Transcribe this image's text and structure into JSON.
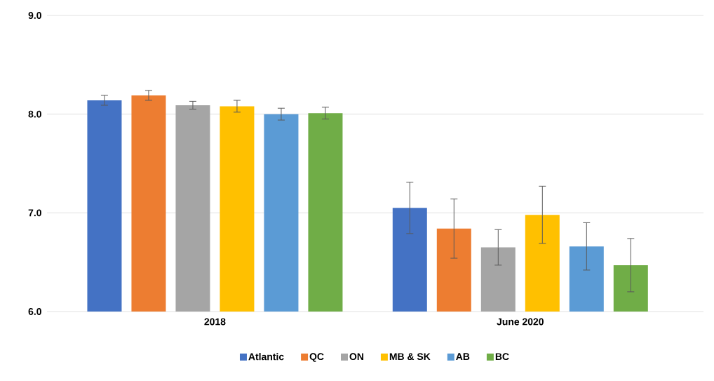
{
  "chart_data": {
    "type": "bar",
    "categories": [
      "2018",
      "June 2020"
    ],
    "series": [
      {
        "name": "Atlantic",
        "color": "#4472c4",
        "values": [
          8.14,
          7.05
        ],
        "errors": [
          0.05,
          0.26
        ]
      },
      {
        "name": "QC",
        "color": "#ed7d31",
        "values": [
          8.19,
          6.84
        ],
        "errors": [
          0.05,
          0.3
        ]
      },
      {
        "name": "ON",
        "color": "#a5a5a5",
        "values": [
          8.09,
          6.65
        ],
        "errors": [
          0.04,
          0.18
        ]
      },
      {
        "name": "MB & SK",
        "color": "#ffc000",
        "values": [
          8.08,
          6.98
        ],
        "errors": [
          0.06,
          0.29
        ]
      },
      {
        "name": "AB",
        "color": "#5b9bd5",
        "values": [
          8.0,
          6.66
        ],
        "errors": [
          0.06,
          0.24
        ]
      },
      {
        "name": "BC",
        "color": "#70ad47",
        "values": [
          8.01,
          6.47
        ],
        "errors": [
          0.06,
          0.27
        ]
      }
    ],
    "ylim": [
      6,
      9
    ],
    "yticks": [
      {
        "value": 6,
        "label": "6.0"
      },
      {
        "value": 7,
        "label": "7.0"
      },
      {
        "value": 8,
        "label": "8.0"
      },
      {
        "value": 9,
        "label": "9.0"
      }
    ],
    "grid": "y",
    "legend": "bottom"
  }
}
